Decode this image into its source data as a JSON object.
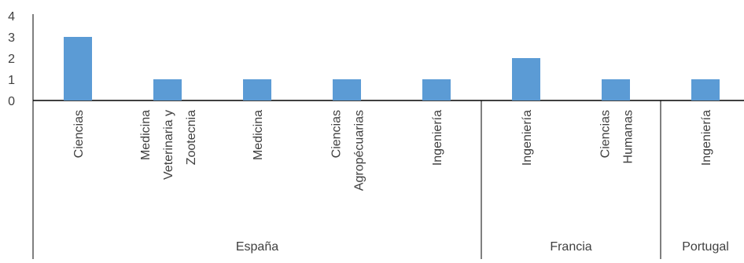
{
  "chart_data": {
    "type": "bar",
    "title": "",
    "xlabel": "",
    "ylabel": "",
    "ylim": [
      0,
      4
    ],
    "yticks": [
      0,
      1,
      2,
      3,
      4
    ],
    "grid": false,
    "legend": "none",
    "bar_color": "#5B9BD5",
    "axis_color": "#000000",
    "text_color": "#404040",
    "groups": [
      {
        "name": "España",
        "categories": [
          {
            "label_lines": [
              "Ciencias"
            ],
            "value": 3
          },
          {
            "label_lines": [
              "Medicina",
              "Veterinaria y",
              "Zootecnia"
            ],
            "value": 1
          },
          {
            "label_lines": [
              "Medicina"
            ],
            "value": 1
          },
          {
            "label_lines": [
              "Ciencias",
              "Agropécuarias"
            ],
            "value": 1
          },
          {
            "label_lines": [
              "Ingeniería"
            ],
            "value": 1
          }
        ]
      },
      {
        "name": "Francia",
        "categories": [
          {
            "label_lines": [
              "Ingeniería"
            ],
            "value": 2
          },
          {
            "label_lines": [
              "Ciencias",
              "Humanas"
            ],
            "value": 1
          }
        ]
      },
      {
        "name": "Portugal",
        "categories": [
          {
            "label_lines": [
              "Ingeniería"
            ],
            "value": 1
          }
        ]
      }
    ]
  }
}
